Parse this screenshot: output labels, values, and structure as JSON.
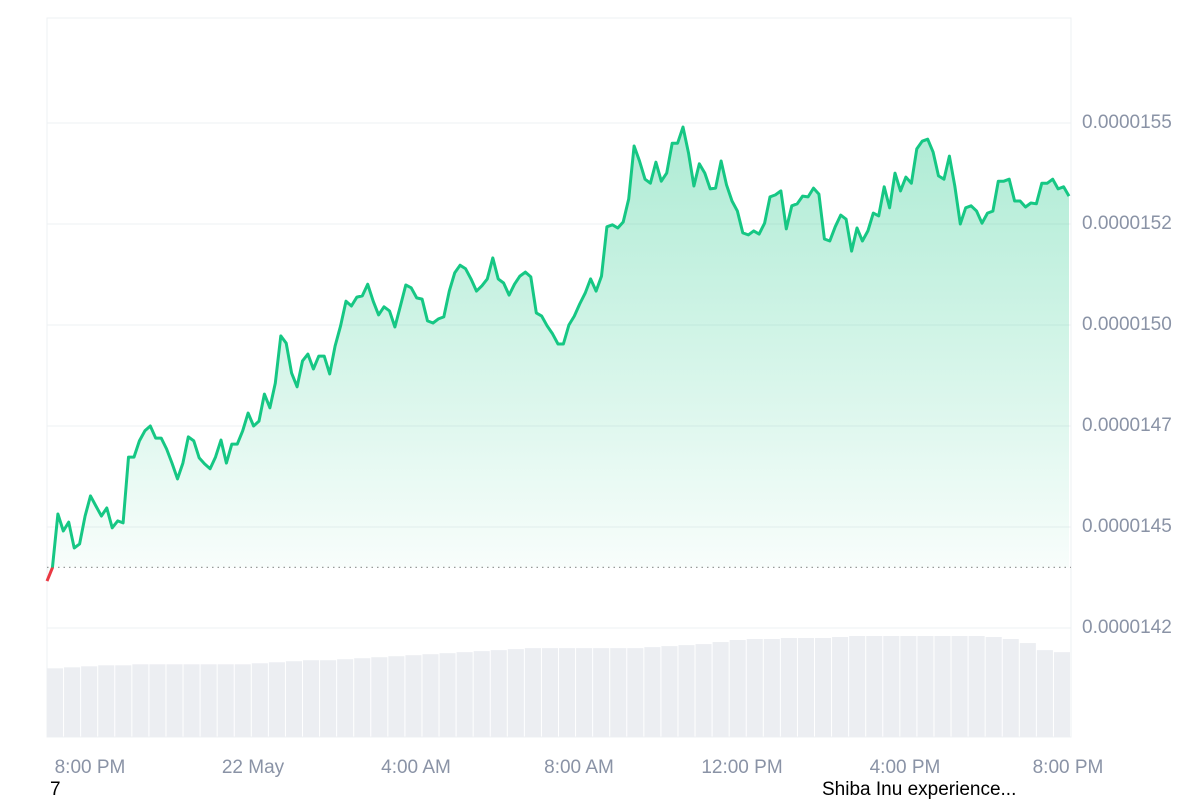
{
  "chart_data": {
    "type": "line",
    "color": "#16c784",
    "down_color": "#ea3943",
    "baseline": 1.44e-05,
    "ylim": [
      1.398e-05,
      1.576e-05
    ],
    "yticks": [
      {
        "value": 1.425e-05,
        "label": "0.0000142"
      },
      {
        "value": 1.45e-05,
        "label": "0.0000145"
      },
      {
        "value": 1.475e-05,
        "label": "0.0000147"
      },
      {
        "value": 1.5e-05,
        "label": "0.0000150"
      },
      {
        "value": 1.525e-05,
        "label": "0.0000152"
      },
      {
        "value": 1.55e-05,
        "label": "0.0000155"
      }
    ],
    "grid": true,
    "xticks": [
      "8:00 PM",
      "22 May",
      "4:00 AM",
      "8:00 AM",
      "12:00 PM",
      "4:00 PM",
      "8:00 PM"
    ],
    "values": [
      1.4366e-05,
      1.4399e-05,
      1.4532e-05,
      1.449e-05,
      1.4512e-05,
      1.4448e-05,
      1.4458e-05,
      1.4527e-05,
      1.4577e-05,
      1.4552e-05,
      1.4527e-05,
      1.4547e-05,
      1.4498e-05,
      1.4515e-05,
      1.451e-05,
      1.4673e-05,
      1.4673e-05,
      1.4713e-05,
      1.4738e-05,
      1.475e-05,
      1.472e-05,
      1.472e-05,
      1.4693e-05,
      1.4658e-05,
      1.4619e-05,
      1.4658e-05,
      1.4723e-05,
      1.4713e-05,
      1.4671e-05,
      1.4656e-05,
      1.4644e-05,
      1.4673e-05,
      1.4715e-05,
      1.4658e-05,
      1.4705e-05,
      1.4705e-05,
      1.4738e-05,
      1.4782e-05,
      1.475e-05,
      1.4762e-05,
      1.4829e-05,
      1.4795e-05,
      1.4856e-05,
      1.4973e-05,
      1.4955e-05,
      1.4881e-05,
      1.4847e-05,
      1.4911e-05,
      1.4928e-05,
      1.4891e-05,
      1.4923e-05,
      1.4923e-05,
      1.4879e-05,
      1.4948e-05,
      1.4998e-05,
      1.5059e-05,
      1.5047e-05,
      1.5069e-05,
      1.5072e-05,
      1.5101e-05,
      1.5059e-05,
      1.5025e-05,
      1.5045e-05,
      1.5035e-05,
      1.4995e-05,
      1.5047e-05,
      1.5099e-05,
      1.5092e-05,
      1.5067e-05,
      1.5064e-05,
      1.501e-05,
      1.5005e-05,
      1.5015e-05,
      1.502e-05,
      1.5084e-05,
      1.5129e-05,
      1.5148e-05,
      1.5139e-05,
      1.5114e-05,
      1.5084e-05,
      1.5097e-05,
      1.5114e-05,
      1.5166e-05,
      1.5114e-05,
      1.5104e-05,
      1.5074e-05,
      1.5101e-05,
      1.5121e-05,
      1.5131e-05,
      1.5119e-05,
      1.503e-05,
      1.5022e-05,
      1.4998e-05,
      1.4978e-05,
      1.4953e-05,
      1.4953e-05,
      1.5e-05,
      1.5022e-05,
      1.5052e-05,
      1.5079e-05,
      1.5114e-05,
      1.5084e-05,
      1.5121e-05,
      1.5243e-05,
      1.5248e-05,
      1.524e-05,
      1.5255e-05,
      1.5312e-05,
      1.5443e-05,
      1.5406e-05,
      1.5361e-05,
      1.5351e-05,
      1.5403e-05,
      1.5356e-05,
      1.5376e-05,
      1.545e-05,
      1.545e-05,
      1.549e-05,
      1.5426e-05,
      1.5344e-05,
      1.5399e-05,
      1.5376e-05,
      1.5337e-05,
      1.5339e-05,
      1.5406e-05,
      1.5347e-05,
      1.5307e-05,
      1.5282e-05,
      1.5228e-05,
      1.5223e-05,
      1.5233e-05,
      1.5225e-05,
      1.5252e-05,
      1.5317e-05,
      1.5322e-05,
      1.5332e-05,
      1.5238e-05,
      1.5295e-05,
      1.53e-05,
      1.5319e-05,
      1.5317e-05,
      1.5339e-05,
      1.5324e-05,
      1.5213e-05,
      1.5208e-05,
      1.5243e-05,
      1.5272e-05,
      1.5262e-05,
      1.5183e-05,
      1.524e-05,
      1.5208e-05,
      1.5233e-05,
      1.5277e-05,
      1.527e-05,
      1.5342e-05,
      1.529e-05,
      1.5376e-05,
      1.5332e-05,
      1.5366e-05,
      1.5351e-05,
      1.5436e-05,
      1.5455e-05,
      1.546e-05,
      1.5428e-05,
      1.5369e-05,
      1.5361e-05,
      1.5418e-05,
      1.5344e-05,
      1.525e-05,
      1.529e-05,
      1.5295e-05,
      1.5282e-05,
      1.5252e-05,
      1.5277e-05,
      1.5282e-05,
      1.5356e-05,
      1.5356e-05,
      1.5361e-05,
      1.5307e-05,
      1.5307e-05,
      1.5292e-05,
      1.5302e-05,
      1.53e-05,
      1.5351e-05,
      1.5351e-05,
      1.5361e-05,
      1.5337e-05,
      1.5342e-05,
      1.5319e-05
    ],
    "volume": {
      "color": "#eceef2",
      "values": [
        68,
        69,
        70,
        71,
        71,
        72,
        72,
        72,
        72,
        72,
        72,
        72,
        73,
        74,
        75,
        76,
        76,
        77,
        78,
        79,
        80,
        81,
        82,
        83,
        84,
        85,
        86,
        87,
        88,
        88,
        88,
        88,
        88,
        88,
        88,
        89,
        90,
        91,
        92,
        94,
        96,
        97,
        97,
        98,
        98,
        98,
        99,
        100,
        100,
        100,
        100,
        100,
        100,
        100,
        100,
        99,
        97,
        93,
        86,
        84
      ]
    },
    "footer_texts": [
      "7",
      "Shiba Inu experience..."
    ]
  }
}
